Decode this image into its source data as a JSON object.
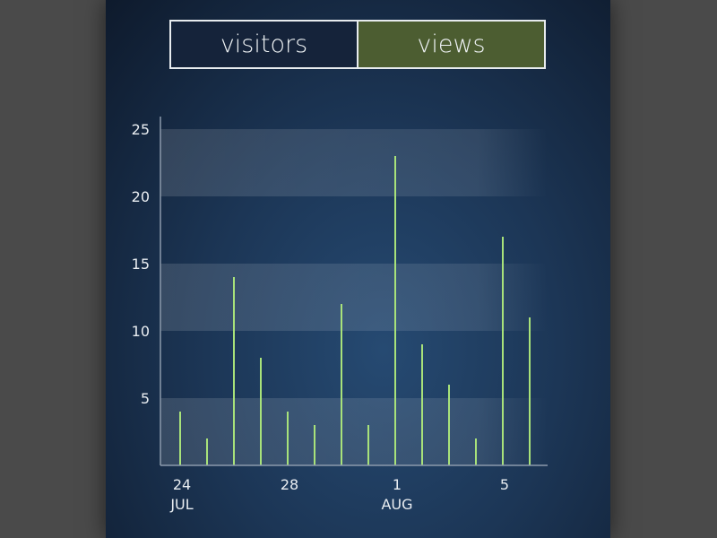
{
  "toggle": {
    "visitors_label": "visitors",
    "views_label": "views",
    "selected": "views"
  },
  "colors": {
    "background_outer": "#4a4a4a",
    "panel": "#1c3656",
    "toggle_selected": "#4c5d31",
    "toggle_unselected": "#15233a",
    "bar": "#a8e27a",
    "text": "#e9edf1"
  },
  "chart_data": {
    "type": "bar",
    "title": "",
    "xlabel": "",
    "ylabel": "",
    "ylim": [
      0,
      25
    ],
    "yticks": [
      5,
      10,
      15,
      20,
      25
    ],
    "grid": "alternating horizontal bands",
    "legend": "none",
    "categories": [
      "Jul 24",
      "Jul 25",
      "Jul 26",
      "Jul 27",
      "Jul 28",
      "Jul 29",
      "Jul 30",
      "Jul 31",
      "Aug 1",
      "Aug 2",
      "Aug 3",
      "Aug 4",
      "Aug 5",
      "Aug 6"
    ],
    "values": [
      4,
      2,
      14,
      8,
      4,
      3,
      12,
      3,
      23,
      9,
      6,
      2,
      17,
      11
    ],
    "xtick_labels": [
      {
        "category": "Jul 24",
        "day": "24",
        "month": "JUL"
      },
      {
        "category": "Jul 28",
        "day": "28",
        "month": ""
      },
      {
        "category": "Aug 1",
        "day": "1",
        "month": "AUG"
      },
      {
        "category": "Aug 5",
        "day": "5",
        "month": ""
      }
    ]
  }
}
